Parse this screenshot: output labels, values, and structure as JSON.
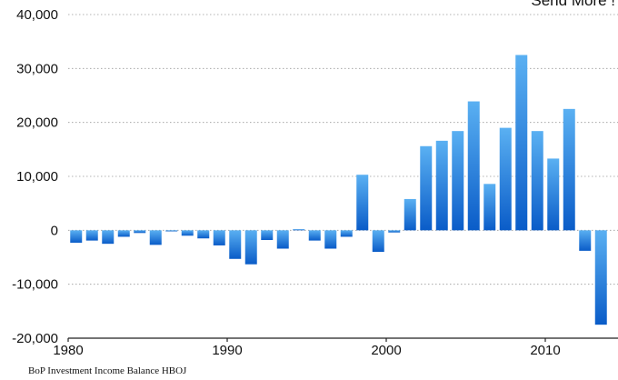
{
  "corner_note": "Send More !",
  "source_note": "BoP Investment Income Balance HBOJ",
  "colors": {
    "bar_top": "#5ab0f2",
    "bar_bottom": "#0a5cc8"
  },
  "chart_data": {
    "type": "bar",
    "title": "",
    "xlabel": "",
    "ylabel": "",
    "ylim": [
      -20000,
      40000
    ],
    "xlim": [
      1980,
      2013
    ],
    "yticks": [
      40000,
      30000,
      20000,
      10000,
      0,
      -10000,
      -20000
    ],
    "ytick_labels": [
      "40,000",
      "30,000",
      "20,000",
      "10,000",
      "0",
      "-10,000",
      "-20,000"
    ],
    "xticks": [
      1980,
      1990,
      2000,
      2010
    ],
    "xtick_labels": [
      "1980",
      "1990",
      "2000",
      "2010"
    ],
    "grid": true,
    "categories": [
      1980,
      1981,
      1982,
      1983,
      1984,
      1985,
      1986,
      1987,
      1988,
      1989,
      1990,
      1991,
      1992,
      1993,
      1994,
      1995,
      1996,
      1997,
      1998,
      1999,
      2000,
      2001,
      2002,
      2003,
      2004,
      2005,
      2006,
      2007,
      2008,
      2009,
      2010,
      2011,
      2012,
      2013
    ],
    "values": [
      -2300,
      -1900,
      -2500,
      -1200,
      -500,
      -2700,
      -200,
      -1000,
      -1500,
      -2800,
      -5300,
      -6300,
      -1800,
      -3400,
      200,
      -1900,
      -3400,
      -1200,
      10300,
      -4000,
      -400,
      5800,
      15600,
      16600,
      18400,
      23900,
      8600,
      19000,
      32500,
      18400,
      13300,
      22500,
      -3800,
      -17500
    ]
  }
}
